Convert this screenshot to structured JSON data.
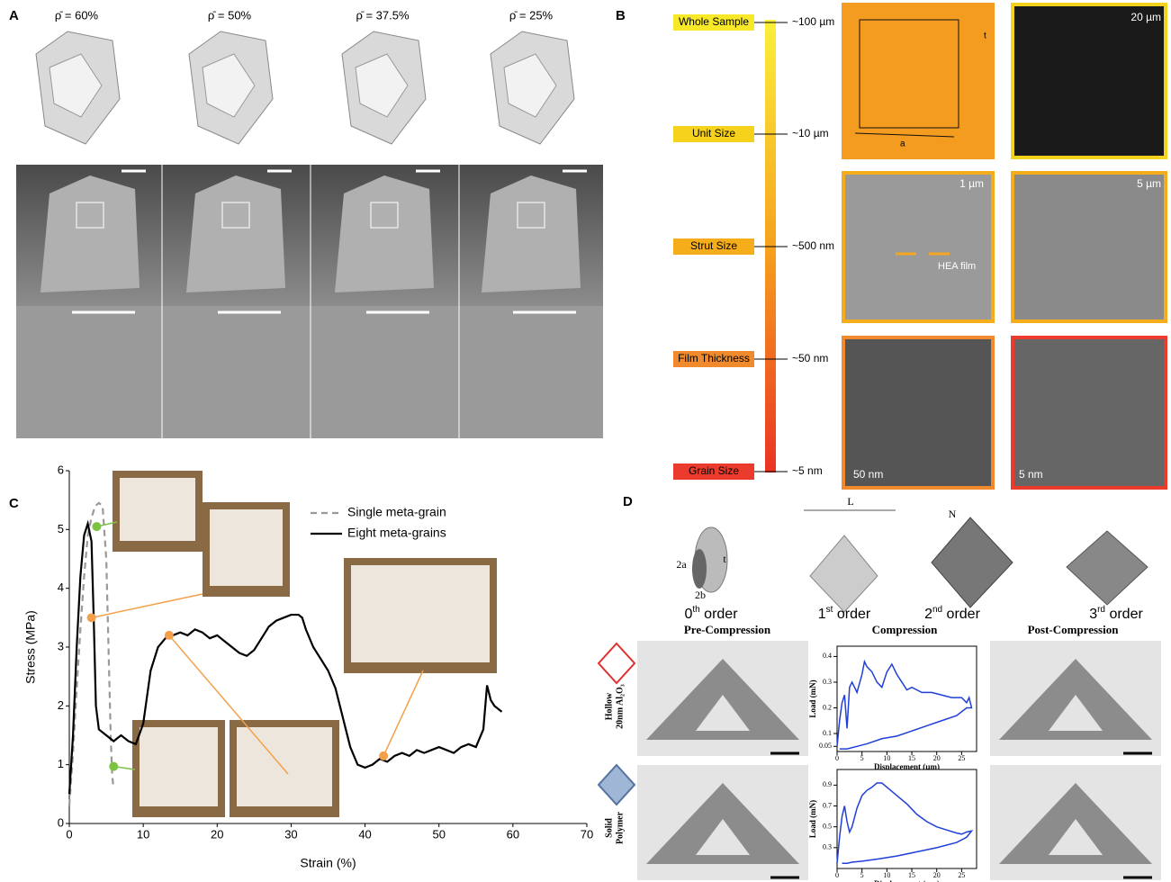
{
  "panel_a": {
    "label": "A",
    "densities": [
      "ρ̄ = 60%",
      "ρ̄ = 50%",
      "ρ̄ = 37.5%",
      "ρ̄ = 25%"
    ]
  },
  "panel_b": {
    "label": "B",
    "scales": [
      {
        "name": "Whole Sample",
        "size": "~100 µm",
        "color": "#f7e82a"
      },
      {
        "name": "Unit Size",
        "size": "~10 µm",
        "color": "#f7d21c"
      },
      {
        "name": "Strut Size",
        "size": "~500 nm",
        "color": "#f5ad1c"
      },
      {
        "name": "Film Thickness",
        "size": "~50 nm",
        "color": "#f08a2c"
      },
      {
        "name": "Grain Size",
        "size": "~5 nm",
        "color": "#ea3b2c"
      }
    ],
    "scale_bars": [
      "20 µm",
      "1 µm",
      "5 µm",
      "50 nm",
      "5 nm"
    ],
    "annotation": "HEA film",
    "cube_labels": [
      "a",
      "t"
    ]
  },
  "panel_c": {
    "label": "C"
  },
  "panel_d": {
    "label": "D",
    "dims": [
      "2a",
      "2b",
      "t",
      "L",
      "N"
    ],
    "orders": [
      {
        "n": "0",
        "sup": "th",
        "word": " order"
      },
      {
        "n": "1",
        "sup": "st",
        "word": " order"
      },
      {
        "n": "2",
        "sup": "nd",
        "word": " order"
      },
      {
        "n": "3",
        "sup": "rd",
        "word": " order"
      }
    ],
    "stages": [
      "Pre-Compression",
      "Compression",
      "Post-Compression"
    ],
    "rows": [
      [
        "Hollow",
        "20nm Al₂O₃"
      ],
      [
        "Solid",
        "Polymer"
      ]
    ]
  },
  "chart_data": [
    {
      "type": "line",
      "xlabel": "Strain (%)",
      "ylabel": "Stress (MPa)",
      "xlim": [
        0,
        70
      ],
      "xticks": [
        0,
        10,
        20,
        30,
        40,
        50,
        60,
        70
      ],
      "ylim": [
        0,
        6
      ],
      "yticks": [
        0,
        1,
        2,
        3,
        4,
        5,
        6
      ],
      "legend": "upper center",
      "series": [
        {
          "name": "Single meta-grain",
          "color": "#999999",
          "dashed": true,
          "x": [
            0,
            0.5,
            1,
            1.5,
            2,
            2.5,
            3,
            3.5,
            4,
            4.5,
            5,
            5.3,
            5.6,
            5.8,
            6
          ],
          "values": [
            0.3,
            1.2,
            2.3,
            3.3,
            4.2,
            4.9,
            5.2,
            5.4,
            5.45,
            5.4,
            4.5,
            3.0,
            1.5,
            0.8,
            0.6
          ]
        },
        {
          "name": "Eight meta-grains",
          "color": "#000000",
          "dashed": false,
          "x": [
            0,
            0.5,
            1,
            1.5,
            2,
            2.5,
            3,
            3.3,
            3.6,
            4,
            5,
            6,
            7,
            8,
            9,
            10,
            11,
            12,
            13,
            14,
            15,
            16,
            17,
            18,
            19,
            20,
            21,
            22,
            23,
            24,
            25,
            26,
            27,
            28,
            29,
            30,
            31,
            31.5,
            32,
            33,
            34,
            35,
            36,
            37,
            38,
            39,
            40,
            41,
            42,
            43,
            44,
            45,
            46,
            47,
            48,
            49,
            50,
            51,
            52,
            53,
            54,
            55,
            56,
            56.5,
            57,
            57.5,
            58,
            58.5
          ],
          "values": [
            0.5,
            1.5,
            3.0,
            4.2,
            4.9,
            5.1,
            4.8,
            3.5,
            2.0,
            1.6,
            1.5,
            1.4,
            1.5,
            1.4,
            1.35,
            1.7,
            2.6,
            3.0,
            3.15,
            3.2,
            3.25,
            3.2,
            3.3,
            3.25,
            3.15,
            3.2,
            3.1,
            3.0,
            2.9,
            2.85,
            2.95,
            3.15,
            3.35,
            3.45,
            3.5,
            3.55,
            3.55,
            3.5,
            3.3,
            3.0,
            2.8,
            2.6,
            2.3,
            1.8,
            1.3,
            1.0,
            0.95,
            1.0,
            1.1,
            1.05,
            1.15,
            1.2,
            1.15,
            1.25,
            1.2,
            1.25,
            1.3,
            1.25,
            1.2,
            1.3,
            1.35,
            1.3,
            1.6,
            2.35,
            2.1,
            2.0,
            1.95,
            1.9
          ]
        }
      ],
      "points": [
        {
          "x": 3.7,
          "y": 5.05,
          "color": "#7dc242"
        },
        {
          "x": 6,
          "y": 0.97,
          "color": "#7dc242"
        },
        {
          "x": 3.0,
          "y": 3.5,
          "color": "#f4a04a"
        },
        {
          "x": 13.5,
          "y": 3.2,
          "color": "#f4a04a"
        },
        {
          "x": 42.5,
          "y": 1.15,
          "color": "#f4a04a"
        }
      ]
    },
    {
      "type": "line",
      "xlabel": "Displacement (µm)",
      "ylabel": "Load (mN)",
      "xlim": [
        0,
        28
      ],
      "xticks": [
        0,
        5,
        10,
        15,
        20,
        25
      ],
      "ylim": [
        0.03,
        0.44
      ],
      "yticks": [
        0.05,
        0.1,
        0.2,
        0.3,
        0.4
      ],
      "series": [
        {
          "color": "#1f3fd8",
          "dashed": false,
          "x": [
            0,
            0.5,
            1,
            1.5,
            2,
            2.5,
            3,
            4,
            5,
            5.5,
            6,
            7,
            8,
            9,
            10,
            11,
            12,
            13,
            14,
            15,
            17,
            19,
            21,
            23,
            25,
            26,
            26.5,
            27,
            26,
            24,
            21,
            18,
            15,
            12,
            9,
            6,
            4,
            2,
            1,
            0.5
          ],
          "values": [
            0.05,
            0.15,
            0.22,
            0.25,
            0.12,
            0.28,
            0.3,
            0.26,
            0.33,
            0.38,
            0.36,
            0.34,
            0.3,
            0.28,
            0.34,
            0.37,
            0.33,
            0.3,
            0.27,
            0.28,
            0.26,
            0.26,
            0.25,
            0.24,
            0.24,
            0.22,
            0.24,
            0.2,
            0.2,
            0.17,
            0.15,
            0.13,
            0.11,
            0.09,
            0.08,
            0.06,
            0.05,
            0.04,
            0.04,
            0.04
          ]
        }
      ]
    },
    {
      "type": "line",
      "xlabel": "Displacement (µm)",
      "ylabel": "Load (mN)",
      "xlim": [
        0,
        28
      ],
      "xticks": [
        0,
        5,
        10,
        15,
        20,
        25
      ],
      "ylim": [
        0.1,
        1.05
      ],
      "yticks": [
        0.3,
        0.5,
        0.7,
        0.9
      ],
      "series": [
        {
          "color": "#1f3fd8",
          "dashed": false,
          "x": [
            0,
            0.5,
            1,
            1.5,
            2,
            2.5,
            3,
            4,
            5,
            6,
            7,
            8,
            9,
            10,
            12,
            14,
            16,
            18,
            20,
            22,
            24,
            25,
            26,
            27,
            26,
            24,
            20,
            16,
            12,
            8,
            5,
            3,
            2,
            1
          ],
          "values": [
            0.15,
            0.4,
            0.6,
            0.7,
            0.55,
            0.45,
            0.5,
            0.68,
            0.8,
            0.85,
            0.88,
            0.92,
            0.92,
            0.88,
            0.8,
            0.72,
            0.62,
            0.55,
            0.5,
            0.47,
            0.44,
            0.43,
            0.45,
            0.46,
            0.4,
            0.35,
            0.3,
            0.26,
            0.22,
            0.19,
            0.17,
            0.16,
            0.15,
            0.15
          ]
        }
      ]
    }
  ]
}
